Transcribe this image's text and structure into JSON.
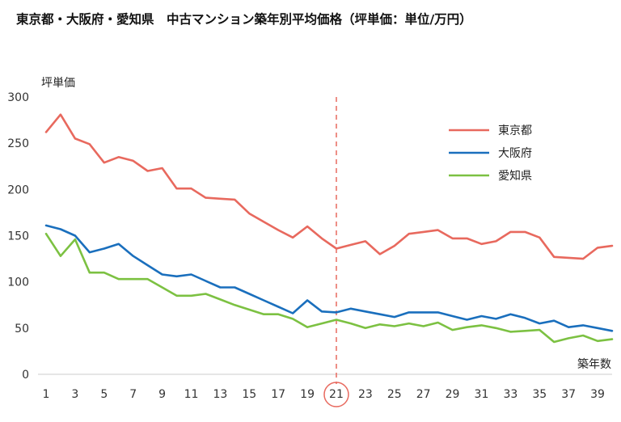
{
  "chart_data": {
    "type": "line",
    "title": "東京都・大阪府・愛知県　中古マンション築年別平均価格（坪単価：単位/万円）",
    "ylabel": "坪単価",
    "xlabel": "築年数",
    "ylim": [
      0,
      300
    ],
    "yticks": [
      0,
      50,
      100,
      150,
      200,
      250,
      300
    ],
    "xlim": [
      1,
      40
    ],
    "xticks": [
      1,
      3,
      5,
      7,
      9,
      11,
      13,
      15,
      17,
      19,
      21,
      23,
      25,
      27,
      29,
      31,
      33,
      35,
      37,
      39
    ],
    "highlight_x": 21,
    "grid": false,
    "legend_position": "top-right",
    "x": [
      1,
      2,
      3,
      4,
      5,
      6,
      7,
      8,
      9,
      10,
      11,
      12,
      13,
      14,
      15,
      16,
      17,
      18,
      19,
      20,
      21,
      22,
      23,
      24,
      25,
      26,
      27,
      28,
      29,
      30,
      31,
      32,
      33,
      34,
      35,
      36,
      37,
      38,
      39,
      40
    ],
    "series": [
      {
        "name": "東京都",
        "color": "#e8695e",
        "values": [
          262,
          281,
          255,
          249,
          229,
          235,
          231,
          220,
          223,
          201,
          201,
          191,
          190,
          189,
          174,
          165,
          156,
          148,
          160,
          147,
          136,
          140,
          144,
          130,
          139,
          152,
          154,
          156,
          147,
          147,
          141,
          144,
          154,
          154,
          148,
          127,
          126,
          125,
          137,
          139
        ]
      },
      {
        "name": "大阪府",
        "color": "#1a6fbd",
        "values": [
          161,
          157,
          150,
          132,
          136,
          141,
          128,
          118,
          108,
          106,
          108,
          101,
          94,
          94,
          87,
          80,
          73,
          66,
          80,
          68,
          67,
          71,
          68,
          65,
          62,
          67,
          67,
          67,
          63,
          59,
          63,
          60,
          65,
          61,
          55,
          58,
          51,
          53,
          50,
          47
        ]
      },
      {
        "name": "愛知県",
        "color": "#7cc142",
        "values": [
          152,
          128,
          146,
          110,
          110,
          103,
          103,
          103,
          94,
          85,
          85,
          87,
          81,
          75,
          70,
          65,
          65,
          60,
          51,
          55,
          59,
          55,
          50,
          54,
          52,
          55,
          52,
          56,
          48,
          51,
          53,
          50,
          46,
          47,
          48,
          35,
          39,
          42,
          36,
          38
        ]
      }
    ]
  }
}
